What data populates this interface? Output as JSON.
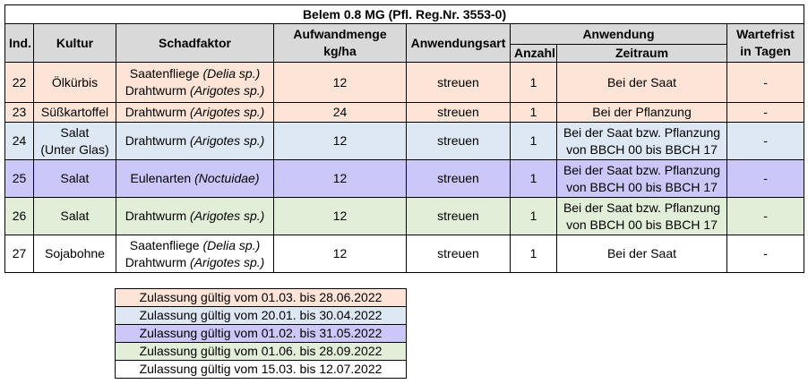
{
  "colors": {
    "header_bg": "#d9d9d9",
    "salmon": "#fde4d6",
    "blue": "#dde8f4",
    "purple": "#cbc7f8",
    "green": "#e1eed8",
    "white": "#ffffff"
  },
  "table": {
    "title": "Belem 0.8 MG (Pfl. Reg.Nr. 3553-0)",
    "headers": {
      "ind": "Ind.",
      "kultur": "Kultur",
      "schadfaktor": "Schadfaktor",
      "aufwand_line1": "Aufwandmenge",
      "aufwand_line2": "kg/ha",
      "anwendungsart": "Anwendungsart",
      "anwendung": "Anwendung",
      "anzahl": "Anzahl",
      "zeitraum": "Zeitraum",
      "wartefrist_line1": "Wartefrist",
      "wartefrist_line2": "in Tagen"
    },
    "rows": [
      {
        "ind": "22",
        "kultur_line1": "Ölkürbis",
        "kultur_line2": "",
        "pest1_name": "Saatenfliege ",
        "pest1_latin": "(Delia sp.)",
        "pest2_name": "Drahtwurm ",
        "pest2_latin": "(Arigotes sp.)",
        "aufwand": "12",
        "art": "streuen",
        "anzahl": "1",
        "zeitraum_line1": "Bei der Saat",
        "zeitraum_line2": "",
        "wartefrist": "-",
        "color": "#fde4d6"
      },
      {
        "ind": "23",
        "kultur_line1": "Süßkartoffel",
        "kultur_line2": "",
        "pest1_name": "Drahtwurm ",
        "pest1_latin": "(Arigotes sp.)",
        "pest2_name": "",
        "pest2_latin": "",
        "aufwand": "24",
        "art": "streuen",
        "anzahl": "1",
        "zeitraum_line1": "Bei der Pflanzung",
        "zeitraum_line2": "",
        "wartefrist": "-",
        "color": "#fde4d6"
      },
      {
        "ind": "24",
        "kultur_line1": "Salat",
        "kultur_line2": "(Unter Glas)",
        "pest1_name": "Drahtwurm ",
        "pest1_latin": "(Arigotes sp.)",
        "pest2_name": "",
        "pest2_latin": "",
        "aufwand": "12",
        "art": "streuen",
        "anzahl": "1",
        "zeitraum_line1": "Bei der Saat bzw. Pflanzung",
        "zeitraum_line2": "von BBCH 00 bis BBCH 17",
        "wartefrist": "-",
        "color": "#dde8f4"
      },
      {
        "ind": "25",
        "kultur_line1": "Salat",
        "kultur_line2": "",
        "pest1_name": "Eulenarten ",
        "pest1_latin": "(Noctuidae)",
        "pest2_name": "",
        "pest2_latin": "",
        "aufwand": "12",
        "art": "streuen",
        "anzahl": "1",
        "zeitraum_line1": "Bei der Saat bzw. Pflanzung",
        "zeitraum_line2": "von BBCH 00 bis BBCH 17",
        "wartefrist": "-",
        "color": "#cbc7f8"
      },
      {
        "ind": "26",
        "kultur_line1": "Salat",
        "kultur_line2": "",
        "pest1_name": "Drahtwurm ",
        "pest1_latin": "(Arigotes sp.)",
        "pest2_name": "",
        "pest2_latin": "",
        "aufwand": "12",
        "art": "streuen",
        "anzahl": "1",
        "zeitraum_line1": "Bei der Saat bzw. Pflanzung",
        "zeitraum_line2": "von BBCH 00 bis BBCH 17",
        "wartefrist": "-",
        "color": "#e1eed8"
      },
      {
        "ind": "27",
        "kultur_line1": "Sojabohne",
        "kultur_line2": "",
        "pest1_name": "Saatenfliege ",
        "pest1_latin": "(Delia sp.)",
        "pest2_name": "Drahtwurm ",
        "pest2_latin": "(Arigotes sp.)",
        "aufwand": "12",
        "art": "streuen",
        "anzahl": "1",
        "zeitraum_line1": "Bei der Saat",
        "zeitraum_line2": "",
        "wartefrist": "-",
        "color": "#ffffff"
      }
    ]
  },
  "legend": [
    {
      "text": "Zulassung gültig vom 01.03. bis 28.06.2022",
      "color": "#fde4d6"
    },
    {
      "text": "Zulassung gültig vom 20.01. bis 30.04.2022",
      "color": "#dde8f4"
    },
    {
      "text": "Zulassung gültig vom 01.02. bis 31.05.2022",
      "color": "#cbc7f8"
    },
    {
      "text": "Zulassung gültig vom 01.06. bis 28.09.2022",
      "color": "#e1eed8"
    },
    {
      "text": "Zulassung gültig vom 15.03. bis 12.07.2022",
      "color": "#ffffff"
    }
  ]
}
